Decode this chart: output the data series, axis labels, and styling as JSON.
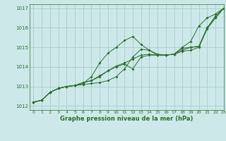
{
  "title": "Graphe pression niveau de la mer (hPa)",
  "background_color": "#cce8e8",
  "grid_color": "#aacccc",
  "line_color": "#2d6e2d",
  "xlim": [
    -0.5,
    23
  ],
  "ylim": [
    1011.8,
    1017.2
  ],
  "xticks": [
    0,
    1,
    2,
    3,
    4,
    5,
    6,
    7,
    8,
    9,
    10,
    11,
    12,
    13,
    14,
    15,
    16,
    17,
    18,
    19,
    20,
    21,
    22,
    23
  ],
  "yticks": [
    1012,
    1013,
    1014,
    1015,
    1016,
    1017
  ],
  "series": [
    [
      1012.2,
      1012.3,
      1012.7,
      1012.9,
      1013.0,
      1013.05,
      1013.1,
      1013.15,
      1013.2,
      1013.3,
      1013.5,
      1013.9,
      1014.5,
      1014.9,
      1014.85,
      1014.65,
      1014.6,
      1014.65,
      1015.0,
      1015.3,
      1016.1,
      1016.5,
      1016.7,
      1017.0
    ],
    [
      1012.2,
      1012.3,
      1012.7,
      1012.9,
      1013.0,
      1013.05,
      1013.15,
      1013.5,
      1014.2,
      1014.7,
      1015.0,
      1015.35,
      1015.55,
      1015.15,
      1014.85,
      1014.6,
      1014.6,
      1014.65,
      1014.95,
      1015.0,
      1015.05,
      1016.0,
      1016.6,
      1017.0
    ],
    [
      1012.2,
      1012.3,
      1012.7,
      1012.9,
      1013.0,
      1013.05,
      1013.2,
      1013.3,
      1013.5,
      1013.8,
      1014.0,
      1014.15,
      1013.9,
      1014.5,
      1014.6,
      1014.6,
      1014.6,
      1014.65,
      1014.8,
      1014.85,
      1015.0,
      1015.95,
      1016.5,
      1017.0
    ],
    [
      1012.2,
      1012.3,
      1012.7,
      1012.9,
      1013.0,
      1013.05,
      1013.2,
      1013.3,
      1013.55,
      1013.8,
      1014.05,
      1014.2,
      1014.4,
      1014.6,
      1014.65,
      1014.6,
      1014.6,
      1014.65,
      1014.85,
      1015.0,
      1015.05,
      1016.0,
      1016.5,
      1017.0
    ]
  ]
}
